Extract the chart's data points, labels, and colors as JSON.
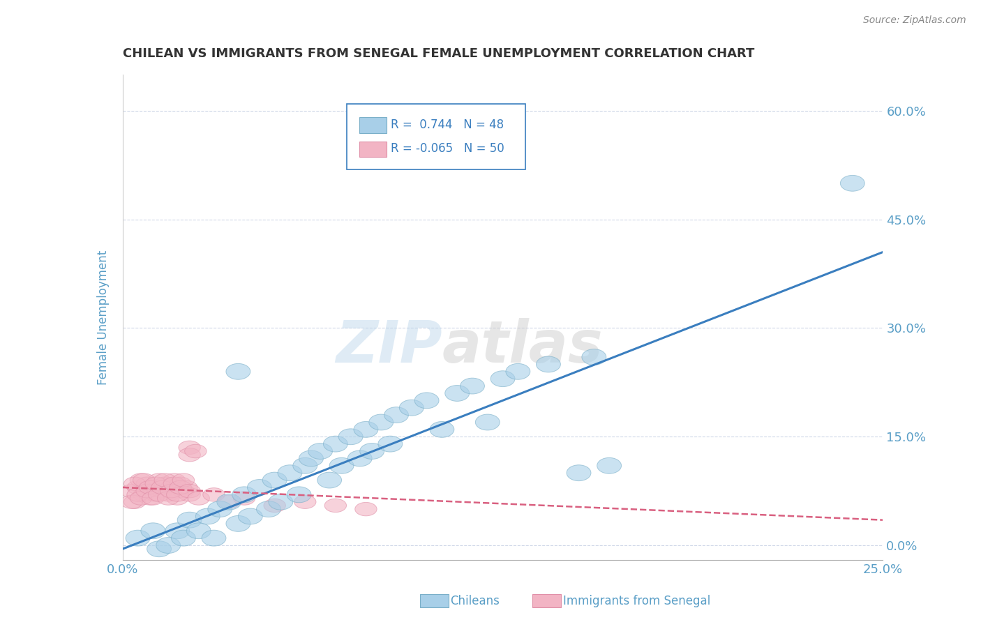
{
  "title": "CHILEAN VS IMMIGRANTS FROM SENEGAL FEMALE UNEMPLOYMENT CORRELATION CHART",
  "source": "Source: ZipAtlas.com",
  "ylabel": "Female Unemployment",
  "xlim": [
    0.0,
    0.25
  ],
  "ylim": [
    -0.02,
    0.65
  ],
  "yticks": [
    0.0,
    0.15,
    0.3,
    0.45,
    0.6
  ],
  "ytick_labels": [
    "0.0%",
    "15.0%",
    "30.0%",
    "45.0%",
    "60.0%"
  ],
  "xticks": [
    0.0,
    0.05,
    0.1,
    0.15,
    0.2,
    0.25
  ],
  "xtick_labels": [
    "0.0%",
    "",
    "",
    "",
    "",
    "25.0%"
  ],
  "blue_R": 0.744,
  "blue_N": 48,
  "pink_R": -0.065,
  "pink_N": 50,
  "blue_color": "#a8cfe8",
  "pink_color": "#f2b4c4",
  "blue_edge": "#7aafc8",
  "pink_edge": "#e090a8",
  "blue_line_color": "#3a7ebf",
  "pink_line_color": "#d96080",
  "title_color": "#333333",
  "axis_color": "#5b9fc7",
  "grid_color": "#d0d8e8",
  "watermark": "ZIPatlas",
  "blue_points": [
    [
      0.005,
      0.01
    ],
    [
      0.01,
      0.02
    ],
    [
      0.012,
      -0.005
    ],
    [
      0.015,
      0.0
    ],
    [
      0.018,
      0.02
    ],
    [
      0.02,
      0.01
    ],
    [
      0.022,
      0.035
    ],
    [
      0.025,
      0.02
    ],
    [
      0.028,
      0.04
    ],
    [
      0.03,
      0.01
    ],
    [
      0.032,
      0.05
    ],
    [
      0.035,
      0.06
    ],
    [
      0.038,
      0.03
    ],
    [
      0.04,
      0.07
    ],
    [
      0.042,
      0.04
    ],
    [
      0.045,
      0.08
    ],
    [
      0.048,
      0.05
    ],
    [
      0.05,
      0.09
    ],
    [
      0.052,
      0.06
    ],
    [
      0.055,
      0.1
    ],
    [
      0.058,
      0.07
    ],
    [
      0.06,
      0.11
    ],
    [
      0.062,
      0.12
    ],
    [
      0.065,
      0.13
    ],
    [
      0.068,
      0.09
    ],
    [
      0.07,
      0.14
    ],
    [
      0.072,
      0.11
    ],
    [
      0.075,
      0.15
    ],
    [
      0.078,
      0.12
    ],
    [
      0.08,
      0.16
    ],
    [
      0.082,
      0.13
    ],
    [
      0.085,
      0.17
    ],
    [
      0.088,
      0.14
    ],
    [
      0.09,
      0.18
    ],
    [
      0.095,
      0.19
    ],
    [
      0.1,
      0.2
    ],
    [
      0.105,
      0.16
    ],
    [
      0.11,
      0.21
    ],
    [
      0.115,
      0.22
    ],
    [
      0.12,
      0.17
    ],
    [
      0.125,
      0.23
    ],
    [
      0.13,
      0.24
    ],
    [
      0.14,
      0.25
    ],
    [
      0.15,
      0.1
    ],
    [
      0.155,
      0.26
    ],
    [
      0.16,
      0.11
    ],
    [
      0.038,
      0.24
    ],
    [
      0.24,
      0.5
    ]
  ],
  "pink_points": [
    [
      0.003,
      0.075
    ],
    [
      0.004,
      0.06
    ],
    [
      0.005,
      0.08
    ],
    [
      0.006,
      0.09
    ],
    [
      0.007,
      0.07
    ],
    [
      0.008,
      0.085
    ],
    [
      0.009,
      0.065
    ],
    [
      0.01,
      0.08
    ],
    [
      0.011,
      0.07
    ],
    [
      0.012,
      0.09
    ],
    [
      0.013,
      0.075
    ],
    [
      0.014,
      0.085
    ],
    [
      0.015,
      0.07
    ],
    [
      0.016,
      0.08
    ],
    [
      0.017,
      0.09
    ],
    [
      0.018,
      0.065
    ],
    [
      0.019,
      0.085
    ],
    [
      0.02,
      0.075
    ],
    [
      0.021,
      0.08
    ],
    [
      0.022,
      0.07
    ],
    [
      0.003,
      0.06
    ],
    [
      0.004,
      0.085
    ],
    [
      0.005,
      0.07
    ],
    [
      0.006,
      0.065
    ],
    [
      0.007,
      0.09
    ],
    [
      0.008,
      0.075
    ],
    [
      0.009,
      0.08
    ],
    [
      0.01,
      0.065
    ],
    [
      0.011,
      0.085
    ],
    [
      0.012,
      0.07
    ],
    [
      0.013,
      0.08
    ],
    [
      0.014,
      0.09
    ],
    [
      0.015,
      0.065
    ],
    [
      0.016,
      0.075
    ],
    [
      0.017,
      0.085
    ],
    [
      0.018,
      0.07
    ],
    [
      0.019,
      0.08
    ],
    [
      0.02,
      0.09
    ],
    [
      0.022,
      0.075
    ],
    [
      0.025,
      0.065
    ],
    [
      0.03,
      0.07
    ],
    [
      0.035,
      0.06
    ],
    [
      0.04,
      0.065
    ],
    [
      0.05,
      0.055
    ],
    [
      0.06,
      0.06
    ],
    [
      0.07,
      0.055
    ],
    [
      0.08,
      0.05
    ],
    [
      0.022,
      0.135
    ],
    [
      0.022,
      0.125
    ],
    [
      0.024,
      0.13
    ]
  ],
  "blue_line_x": [
    0.0,
    0.25
  ],
  "blue_line_y": [
    -0.005,
    0.405
  ],
  "pink_line_x": [
    0.0,
    0.25
  ],
  "pink_line_y": [
    0.08,
    0.035
  ]
}
